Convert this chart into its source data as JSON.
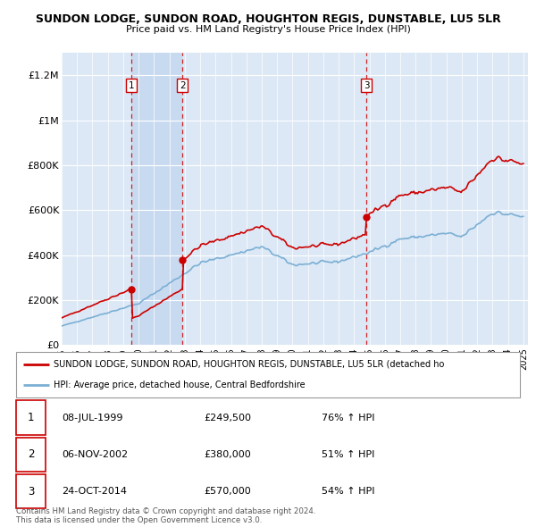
{
  "title": "SUNDON LODGE, SUNDON ROAD, HOUGHTON REGIS, DUNSTABLE, LU5 5LR",
  "subtitle": "Price paid vs. HM Land Registry's House Price Index (HPI)",
  "background_color": "#ffffff",
  "plot_bg_color": "#dce8f5",
  "highlight_bg_color": "#c8daf0",
  "grid_color": "#ffffff",
  "sale_info": [
    {
      "label": "1",
      "date": "08-JUL-1999",
      "price": "£249,500",
      "hpi": "76% ↑ HPI"
    },
    {
      "label": "2",
      "date": "06-NOV-2002",
      "price": "£380,000",
      "hpi": "51% ↑ HPI"
    },
    {
      "label": "3",
      "date": "24-OCT-2014",
      "price": "£570,000",
      "hpi": "54% ↑ HPI"
    }
  ],
  "legend_line1": "SUNDON LODGE, SUNDON ROAD, HOUGHTON REGIS, DUNSTABLE, LU5 5LR (detached ho",
  "legend_line2": "HPI: Average price, detached house, Central Bedfordshire",
  "footer1": "Contains HM Land Registry data © Crown copyright and database right 2024.",
  "footer2": "This data is licensed under the Open Government Licence v3.0.",
  "price_line_color": "#cc0000",
  "hpi_line_color": "#7bafd4",
  "vline_color": "#cc0000",
  "ylim": [
    0,
    1300000
  ],
  "yticks": [
    0,
    200000,
    400000,
    600000,
    800000,
    1000000,
    1200000
  ],
  "ytick_labels": [
    "£0",
    "£200K",
    "£400K",
    "£600K",
    "£800K",
    "£1M",
    "£1.2M"
  ],
  "x_start_year": 1995,
  "x_end_year": 2025,
  "sale_years": [
    1999.53,
    2002.85,
    2014.81
  ],
  "sale_prices": [
    249500,
    380000,
    570000
  ]
}
